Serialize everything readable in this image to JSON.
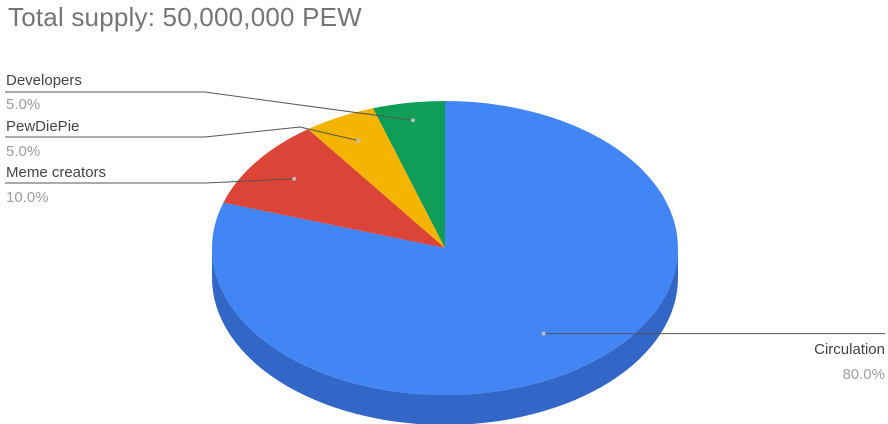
{
  "chart_data": {
    "type": "pie",
    "title": "Total supply: 50,000,000 PEW",
    "style": "3d",
    "slices": [
      {
        "label": "Circulation",
        "value": 80.0,
        "percent_label": "80.0%",
        "color": "#4285f4",
        "side_color": "#3367c7"
      },
      {
        "label": "Meme creators",
        "value": 10.0,
        "percent_label": "10.0%",
        "color": "#db4437",
        "side_color": "#b3352a"
      },
      {
        "label": "PewDiePie",
        "value": 5.0,
        "percent_label": "5.0%",
        "color": "#f4b400",
        "side_color": "#c99200"
      },
      {
        "label": "Developers",
        "value": 5.0,
        "percent_label": "5.0%",
        "color": "#0f9d58",
        "side_color": "#0b7a44"
      }
    ],
    "legend": "none",
    "label_color": "#444444",
    "percent_color": "#9e9e9e",
    "leader_line_color": "#555555"
  }
}
